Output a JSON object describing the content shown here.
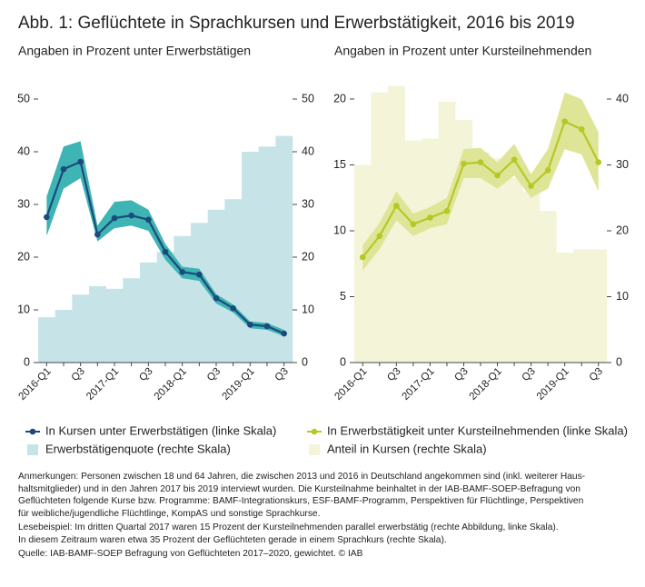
{
  "title": "Abb. 1: Geflüchtete in Sprachkursen und Erwerbstätigkeit, 2016 bis 2019",
  "chart_data": [
    {
      "type": "combo",
      "subtitle": "Angaben in Prozent unter Erwerbstätigen",
      "categories": [
        "2016-Q1",
        null,
        "Q3",
        null,
        "2017-Q1",
        null,
        "Q3",
        null,
        "2018-Q1",
        null,
        "Q3",
        null,
        "2019-Q1",
        null,
        "Q3"
      ],
      "ylim": [
        0,
        50
      ],
      "yticks": [
        0,
        10,
        20,
        30,
        40,
        50
      ],
      "y2lim": [
        0,
        50
      ],
      "y2ticks": [
        0,
        10,
        20,
        30,
        40,
        50
      ],
      "series": [
        {
          "name": "In Kursen unter Erwerbstätigen (linke Skala)",
          "type": "line",
          "color": "#1b4a7c",
          "band_color": "#3fb4b4",
          "values": [
            27.6,
            36.7,
            38.1,
            24.3,
            27.4,
            27.9,
            27.1,
            21.0,
            17.2,
            16.7,
            12.2,
            10.3,
            7.2,
            6.9,
            5.5
          ],
          "lower": [
            24.0,
            33.0,
            35.0,
            23.0,
            25.5,
            26.0,
            25.0,
            19.5,
            16.0,
            15.5,
            11.2,
            9.5,
            6.5,
            6.2,
            5.0
          ],
          "upper": [
            31.5,
            41.0,
            42.0,
            26.0,
            30.5,
            30.8,
            29.0,
            22.5,
            18.2,
            17.8,
            13.0,
            11.0,
            7.8,
            7.5,
            6.2
          ]
        },
        {
          "name": "Erwerbstätigenquote (rechte Skala)",
          "type": "bar",
          "axis": "y2",
          "color": "#c6e4e7",
          "values": [
            8.6,
            10.0,
            12.9,
            14.5,
            14.0,
            16.0,
            19.0,
            21.0,
            24.0,
            26.5,
            29.0,
            31.0,
            40.0,
            41.0,
            43.0
          ]
        }
      ]
    },
    {
      "type": "combo",
      "subtitle": "Angaben in Prozent unter Kursteilnehmenden",
      "categories": [
        "2016-Q1",
        null,
        "Q3",
        null,
        "2017-Q1",
        null,
        "Q3",
        null,
        "2018-Q1",
        null,
        "Q3",
        null,
        "2019-Q1",
        null,
        "Q3"
      ],
      "ylim": [
        0,
        20
      ],
      "yticks": [
        0,
        5,
        10,
        15,
        20
      ],
      "y2lim": [
        0,
        40
      ],
      "y2ticks": [
        0,
        10,
        20,
        30,
        40
      ],
      "series": [
        {
          "name": "In Erwerbstätigkeit unter Kursteilnehmenden (linke Skala)",
          "type": "line",
          "color": "#b5c826",
          "band_color": "#dfe596",
          "values": [
            8.0,
            9.6,
            11.9,
            10.5,
            11.0,
            11.5,
            15.1,
            15.2,
            14.2,
            15.4,
            13.4,
            14.6,
            18.3,
            17.7,
            15.2
          ],
          "lower": [
            7.0,
            8.6,
            10.8,
            9.6,
            10.2,
            10.5,
            14.0,
            14.0,
            13.2,
            14.2,
            12.5,
            13.2,
            16.2,
            15.8,
            13.0
          ],
          "upper": [
            8.9,
            10.6,
            13.0,
            11.3,
            11.8,
            12.5,
            16.2,
            16.3,
            15.2,
            16.6,
            14.3,
            16.2,
            20.5,
            20.0,
            17.5
          ]
        },
        {
          "name": "Anteil in Kursen (rechte Skala)",
          "type": "bar",
          "axis": "y2",
          "color": "#f3f4d8",
          "values": [
            30.0,
            41.0,
            42.0,
            33.7,
            34.0,
            39.6,
            36.8,
            32.0,
            31.0,
            28.0,
            26.0,
            23.0,
            16.7,
            17.2,
            17.2
          ]
        }
      ]
    }
  ],
  "notes": [
    "Anmerkungen: Personen zwischen 18 und 64 Jahren, die zwischen 2013 und 2016 in Deutschland angekommen sind (inkl. weiterer Haus-",
    "haltsmitglieder) und in den Jahren 2017 bis 2019 interviewt wurden. Die Kursteilnahme beinhaltet in der IAB-BAMF-SOEP-Befragung von",
    "Geflüchteten folgende Kurse bzw. Programme: BAMF-Integrationskurs, ESF-BAMF-Programm, Perspektiven für Flüchtlinge, Perspektiven",
    "für weibliche/jugendliche Flüchtlinge, KompAS und sonstige Sprachkurse.",
    "Lesebeispiel: Im dritten Quartal 2017 waren 15 Prozent der Kursteilnehmenden parallel erwerbstätig (rechte Abbildung, linke Skala).",
    "In diesem Zeitraum waren etwa 35 Prozent der Geflüchteten gerade in einem Sprachkurs (rechte Skala).",
    "Quelle: IAB-BAMF-SOEP Befragung von Geflüchteten 2017–2020, gewichtet. © IAB"
  ]
}
